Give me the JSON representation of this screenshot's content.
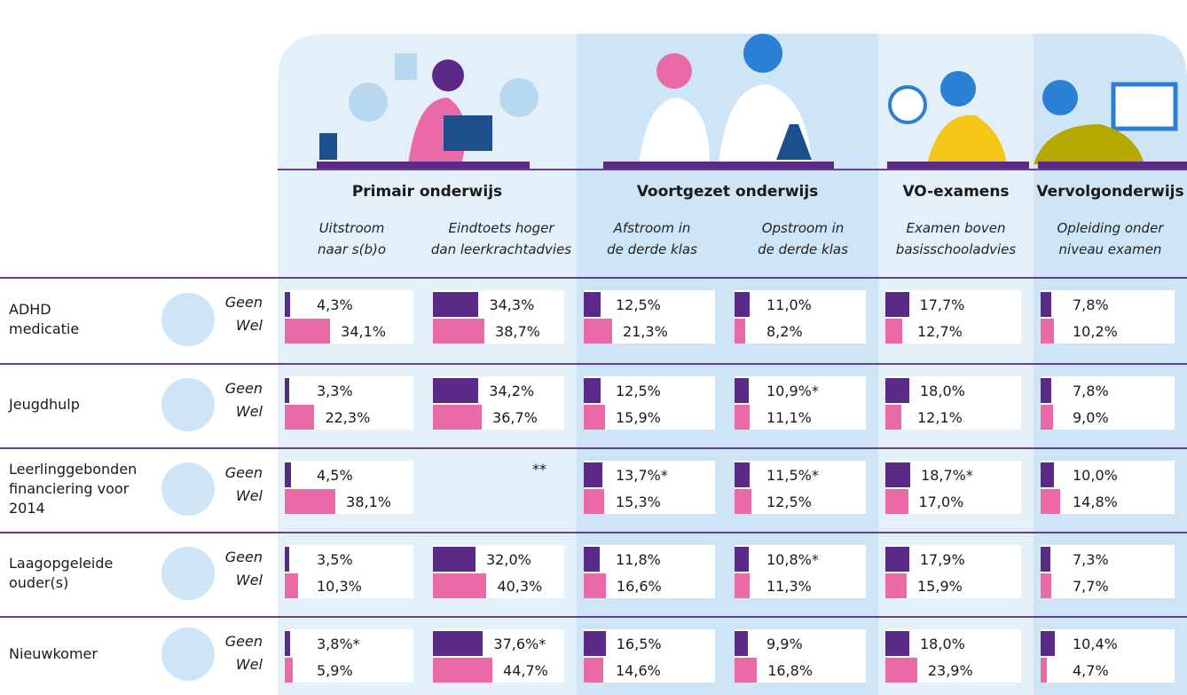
{
  "groups": [
    {
      "title": "Primair onderwijs",
      "columns": [
        [
          "Uitstroom",
          "naar s(b)o"
        ],
        [
          "Eindtoets hoger",
          "dan leerkrachtadvies"
        ]
      ]
    },
    {
      "title": "Voortgezet onderwijs",
      "columns": [
        [
          "Afstroom in",
          "de derde klas"
        ],
        [
          "Opstroom in",
          "de derde klas"
        ]
      ]
    },
    {
      "title": "VO-examens",
      "columns": [
        [
          "Examen boven",
          "basisschooladvies"
        ]
      ]
    },
    {
      "title": "Vervolgonderwijs",
      "columns": [
        [
          "Opleiding onder",
          "niveau examen"
        ]
      ]
    }
  ],
  "levels": [
    "Geen",
    "Wel"
  ],
  "rows": [
    {
      "label": [
        "ADHD",
        "medicatie"
      ],
      "cells": [
        [
          {
            "value": 4.3,
            "label": "4,3%"
          },
          {
            "value": 34.1,
            "label": "34,1%"
          }
        ],
        [
          {
            "value": 34.3,
            "label": "34,3%"
          },
          {
            "value": 38.7,
            "label": "38,7%"
          }
        ],
        [
          {
            "value": 12.5,
            "label": "12,5%"
          },
          {
            "value": 21.3,
            "label": "21,3%"
          }
        ],
        [
          {
            "value": 11.0,
            "label": "11,0%"
          },
          {
            "value": 8.2,
            "label": "8,2%"
          }
        ],
        [
          {
            "value": 17.7,
            "label": "17,7%"
          },
          {
            "value": 12.7,
            "label": "12,7%"
          }
        ],
        [
          {
            "value": 7.8,
            "label": "7,8%"
          },
          {
            "value": 10.2,
            "label": "10,2%"
          }
        ]
      ]
    },
    {
      "label": [
        "Jeugdhulp"
      ],
      "cells": [
        [
          {
            "value": 3.3,
            "label": "3,3%"
          },
          {
            "value": 22.3,
            "label": "22,3%"
          }
        ],
        [
          {
            "value": 34.2,
            "label": "34,2%"
          },
          {
            "value": 36.7,
            "label": "36,7%"
          }
        ],
        [
          {
            "value": 12.5,
            "label": "12,5%"
          },
          {
            "value": 15.9,
            "label": "15,9%"
          }
        ],
        [
          {
            "value": 10.9,
            "label": "10,9%*"
          },
          {
            "value": 11.1,
            "label": "11,1%"
          }
        ],
        [
          {
            "value": 18.0,
            "label": "18,0%"
          },
          {
            "value": 12.1,
            "label": "12,1%"
          }
        ],
        [
          {
            "value": 7.8,
            "label": "7,8%"
          },
          {
            "value": 9.0,
            "label": "9,0%"
          }
        ]
      ]
    },
    {
      "label": [
        "Leerlinggebonden",
        "financiering voor",
        "2014"
      ],
      "cells": [
        [
          {
            "value": 4.5,
            "label": "4,5%"
          },
          {
            "value": 38.1,
            "label": "38,1%"
          }
        ],
        {
          "note": "**"
        },
        [
          {
            "value": 13.7,
            "label": "13,7%*"
          },
          {
            "value": 15.3,
            "label": "15,3%"
          }
        ],
        [
          {
            "value": 11.5,
            "label": "11,5%*"
          },
          {
            "value": 12.5,
            "label": "12,5%"
          }
        ],
        [
          {
            "value": 18.7,
            "label": "18,7%*"
          },
          {
            "value": 17.0,
            "label": "17,0%"
          }
        ],
        [
          {
            "value": 10.0,
            "label": "10,0%"
          },
          {
            "value": 14.8,
            "label": "14,8%"
          }
        ]
      ]
    },
    {
      "label": [
        "Laagopgeleide",
        "ouder(s)"
      ],
      "cells": [
        [
          {
            "value": 3.5,
            "label": "3,5%"
          },
          {
            "value": 10.3,
            "label": "10,3%"
          }
        ],
        [
          {
            "value": 32.0,
            "label": "32,0%"
          },
          {
            "value": 40.3,
            "label": "40,3%"
          }
        ],
        [
          {
            "value": 11.8,
            "label": "11,8%"
          },
          {
            "value": 16.6,
            "label": "16,6%"
          }
        ],
        [
          {
            "value": 10.8,
            "label": "10,8%*"
          },
          {
            "value": 11.3,
            "label": "11,3%"
          }
        ],
        [
          {
            "value": 17.9,
            "label": "17,9%"
          },
          {
            "value": 15.9,
            "label": "15,9%"
          }
        ],
        [
          {
            "value": 7.3,
            "label": "7,3%"
          },
          {
            "value": 7.7,
            "label": "7,7%"
          }
        ]
      ]
    },
    {
      "label": [
        "Nieuwkomer"
      ],
      "cells": [
        [
          {
            "value": 3.8,
            "label": "3,8%*"
          },
          {
            "value": 5.9,
            "label": "5,9%"
          }
        ],
        [
          {
            "value": 37.6,
            "label": "37,6%*"
          },
          {
            "value": 44.7,
            "label": "44,7%"
          }
        ],
        [
          {
            "value": 16.5,
            "label": "16,5%"
          },
          {
            "value": 14.6,
            "label": "14,6%"
          }
        ],
        [
          {
            "value": 9.9,
            "label": "9,9%"
          },
          {
            "value": 16.8,
            "label": "16,8%"
          }
        ],
        [
          {
            "value": 18.0,
            "label": "18,0%"
          },
          {
            "value": 23.9,
            "label": "23,9%"
          }
        ],
        [
          {
            "value": 10.4,
            "label": "10,4%"
          },
          {
            "value": 4.7,
            "label": "4,7%"
          }
        ]
      ]
    }
  ]
}
